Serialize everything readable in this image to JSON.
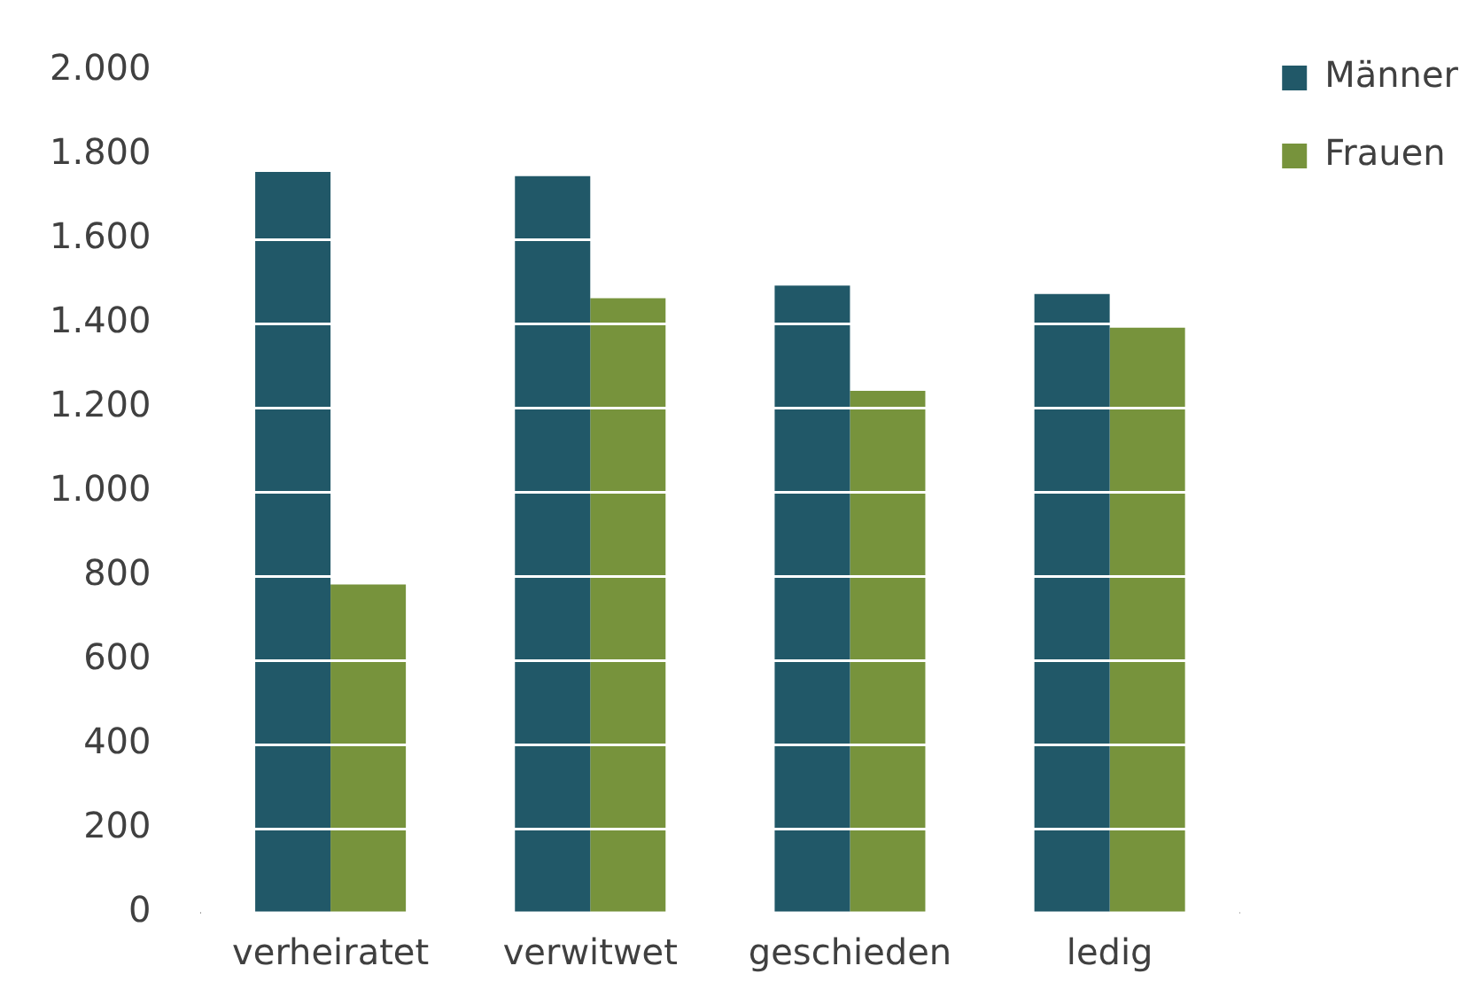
{
  "chart_data": {
    "type": "bar",
    "categories": [
      "verheiratet",
      "verwitwet",
      "geschieden",
      "ledig"
    ],
    "series": [
      {
        "name": "Männer",
        "color": "#215868",
        "values": [
          1760,
          1750,
          1490,
          1470
        ]
      },
      {
        "name": "Frauen",
        "color": "#77933c",
        "values": [
          780,
          1460,
          1240,
          1390
        ]
      }
    ],
    "ylim": [
      0,
      2000
    ],
    "yticks": [
      0,
      200,
      400,
      600,
      800,
      {
        "value": 1000,
        "label": "1.000"
      },
      {
        "value": 1200,
        "label": "1.200"
      },
      {
        "value": 1400,
        "label": "1.400"
      },
      {
        "value": 1600,
        "label": "1.600"
      },
      {
        "value": 1800,
        "label": "1.800"
      },
      {
        "value": 2000,
        "label": "2.000"
      }
    ],
    "grid": "y",
    "legend": "top right"
  }
}
